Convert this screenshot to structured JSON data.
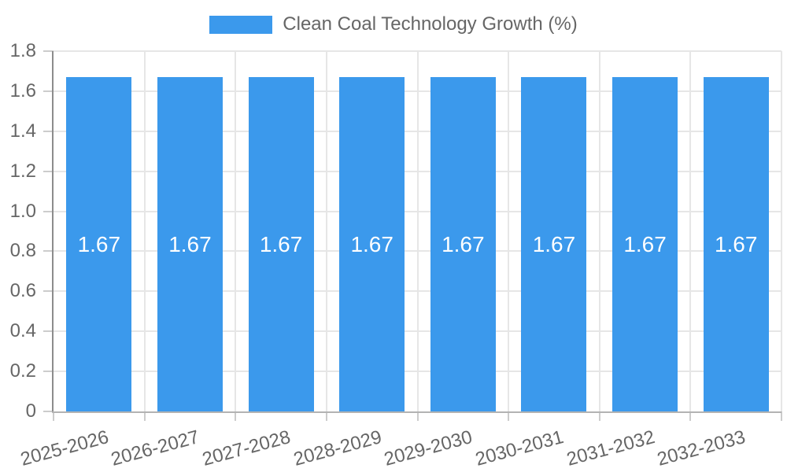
{
  "chart_data": {
    "type": "bar",
    "title": "Clean Coal Technology Growth (%)",
    "legend_position": "top",
    "series": [
      {
        "name": "Clean Coal Technology Growth (%)",
        "color": "#3B99EC"
      }
    ],
    "categories": [
      "2025-2026",
      "2026-2027",
      "2027-2028",
      "2028-2029",
      "2029-2030",
      "2030-2031",
      "2031-2032",
      "2032-2033"
    ],
    "values": [
      1.67,
      1.67,
      1.67,
      1.67,
      1.67,
      1.67,
      1.67,
      1.67
    ],
    "value_labels": [
      "1.67",
      "1.67",
      "1.67",
      "1.67",
      "1.67",
      "1.67",
      "1.67",
      "1.67"
    ],
    "xlabel": "",
    "ylabel": "",
    "ylim": [
      0,
      1.8
    ],
    "ytick_labels": [
      "0",
      "0.2",
      "0.4",
      "0.6",
      "0.8",
      "1.0",
      "1.2",
      "1.4",
      "1.6",
      "1.8"
    ],
    "grid": "on",
    "xtick_rotation_deg": -15
  },
  "colors": {
    "bar": "#3B99EC",
    "legend_text": "#666666",
    "tick_text": "#666666",
    "value_label": "#FFFFFF",
    "gridline": "#E6E6E6",
    "axis_line_y": "#8C8C8C",
    "axis_line_x": "#B3B3B3",
    "tick_mark": "#CCCCCC",
    "background": "#FFFFFF"
  }
}
